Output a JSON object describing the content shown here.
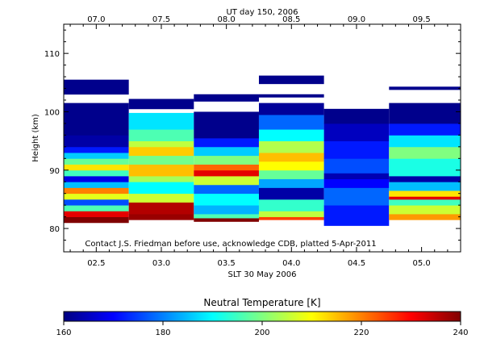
{
  "chart_data": {
    "type": "heatmap",
    "top_axis_title": "UT day 150, 2006",
    "bottom_axis_title": "SLT 30 May 2006",
    "ylabel": "Height (km)",
    "annotation": "Contact J.S. Friedman before use, acknowledge CDB, platted 5-Apr-2011",
    "x_range": [
      2.25,
      5.3
    ],
    "y_range": [
      76,
      115
    ],
    "bottom_ticks": [
      {
        "value": 2.5,
        "label": "02.5"
      },
      {
        "value": 3.0,
        "label": "03.0"
      },
      {
        "value": 3.5,
        "label": "03.5"
      },
      {
        "value": 4.0,
        "label": "04.0"
      },
      {
        "value": 4.5,
        "label": "04.5"
      },
      {
        "value": 5.0,
        "label": "05.0"
      }
    ],
    "top_ticks": [
      {
        "value": 2.5,
        "label": "07.0"
      },
      {
        "value": 3.0,
        "label": "07.5"
      },
      {
        "value": 3.5,
        "label": "08.0"
      },
      {
        "value": 4.0,
        "label": "08.5"
      },
      {
        "value": 4.5,
        "label": "09.0"
      },
      {
        "value": 5.0,
        "label": "09.5"
      }
    ],
    "y_ticks": [
      {
        "value": 80,
        "label": "80"
      },
      {
        "value": 90,
        "label": "90"
      },
      {
        "value": 100,
        "label": "100"
      },
      {
        "value": 110,
        "label": "110"
      }
    ],
    "colorbar": {
      "title": "Neutral Temperature [K]",
      "range": [
        160,
        240
      ],
      "ticks": [
        {
          "value": 160,
          "label": "160"
        },
        {
          "value": 180,
          "label": "180"
        },
        {
          "value": 200,
          "label": "200"
        },
        {
          "value": 220,
          "label": "220"
        },
        {
          "value": 240,
          "label": "240"
        }
      ]
    },
    "columns": [
      {
        "slt_start": 2.25,
        "slt_end": 2.75,
        "cells": [
          {
            "h0": 81.0,
            "h1": 82.0,
            "t": 240
          },
          {
            "h0": 82.0,
            "h1": 83.0,
            "t": 232
          },
          {
            "h0": 83.0,
            "h1": 84.0,
            "t": 196
          },
          {
            "h0": 84.0,
            "h1": 85.0,
            "t": 176
          },
          {
            "h0": 85.0,
            "h1": 86.0,
            "t": 208
          },
          {
            "h0": 86.0,
            "h1": 87.0,
            "t": 220
          },
          {
            "h0": 87.0,
            "h1": 88.0,
            "t": 185
          },
          {
            "h0": 88.0,
            "h1": 89.0,
            "t": 168
          },
          {
            "h0": 89.0,
            "h1": 90.0,
            "t": 195
          },
          {
            "h0": 90.0,
            "h1": 91.0,
            "t": 212
          },
          {
            "h0": 91.0,
            "h1": 92.0,
            "t": 198
          },
          {
            "h0": 92.0,
            "h1": 93.0,
            "t": 186
          },
          {
            "h0": 93.0,
            "h1": 94.0,
            "t": 172
          },
          {
            "h0": 94.0,
            "h1": 96.0,
            "t": 163
          },
          {
            "h0": 96.0,
            "h1": 101.5,
            "t": 161
          },
          {
            "h0": 103.0,
            "h1": 105.5,
            "t": 161
          }
        ]
      },
      {
        "slt_start": 2.75,
        "slt_end": 3.25,
        "cells": [
          {
            "h0": 81.5,
            "h1": 82.5,
            "t": 238
          },
          {
            "h0": 82.5,
            "h1": 84.5,
            "t": 236
          },
          {
            "h0": 84.5,
            "h1": 86.0,
            "t": 206
          },
          {
            "h0": 86.0,
            "h1": 88.0,
            "t": 190
          },
          {
            "h0": 88.0,
            "h1": 89.0,
            "t": 203
          },
          {
            "h0": 89.0,
            "h1": 91.0,
            "t": 215
          },
          {
            "h0": 91.0,
            "h1": 92.5,
            "t": 199
          },
          {
            "h0": 92.5,
            "h1": 94.0,
            "t": 214
          },
          {
            "h0": 94.0,
            "h1": 95.0,
            "t": 205
          },
          {
            "h0": 95.0,
            "h1": 97.0,
            "t": 196
          },
          {
            "h0": 97.0,
            "h1": 99.8,
            "t": 188
          },
          {
            "h0": 100.5,
            "h1": 102.2,
            "t": 161
          }
        ]
      },
      {
        "slt_start": 3.25,
        "slt_end": 3.75,
        "cells": [
          {
            "h0": 81.2,
            "h1": 81.8,
            "t": 240
          },
          {
            "h0": 81.8,
            "h1": 82.5,
            "t": 196
          },
          {
            "h0": 82.5,
            "h1": 84.0,
            "t": 184
          },
          {
            "h0": 84.0,
            "h1": 86.0,
            "t": 190
          },
          {
            "h0": 86.0,
            "h1": 87.5,
            "t": 178
          },
          {
            "h0": 87.5,
            "h1": 89.0,
            "t": 206
          },
          {
            "h0": 89.0,
            "h1": 90.0,
            "t": 232
          },
          {
            "h0": 90.0,
            "h1": 91.0,
            "t": 222
          },
          {
            "h0": 91.0,
            "h1": 92.5,
            "t": 200
          },
          {
            "h0": 92.5,
            "h1": 94.0,
            "t": 186
          },
          {
            "h0": 94.0,
            "h1": 95.5,
            "t": 172
          },
          {
            "h0": 95.5,
            "h1": 100.0,
            "t": 161
          },
          {
            "h0": 101.8,
            "h1": 103.0,
            "t": 161
          }
        ]
      },
      {
        "slt_start": 3.75,
        "slt_end": 4.25,
        "cells": [
          {
            "h0": 81.5,
            "h1": 82.0,
            "t": 225
          },
          {
            "h0": 82.0,
            "h1": 83.0,
            "t": 205
          },
          {
            "h0": 83.0,
            "h1": 85.0,
            "t": 194
          },
          {
            "h0": 85.0,
            "h1": 87.0,
            "t": 163
          },
          {
            "h0": 87.0,
            "h1": 88.5,
            "t": 183
          },
          {
            "h0": 88.5,
            "h1": 90.0,
            "t": 198
          },
          {
            "h0": 90.0,
            "h1": 91.5,
            "t": 210
          },
          {
            "h0": 91.5,
            "h1": 93.0,
            "t": 215
          },
          {
            "h0": 93.0,
            "h1": 95.0,
            "t": 204
          },
          {
            "h0": 95.0,
            "h1": 97.0,
            "t": 190
          },
          {
            "h0": 97.0,
            "h1": 99.5,
            "t": 178
          },
          {
            "h0": 99.5,
            "h1": 101.5,
            "t": 162
          },
          {
            "h0": 102.5,
            "h1": 103.0,
            "t": 161
          },
          {
            "h0": 104.8,
            "h1": 106.2,
            "t": 161
          }
        ]
      },
      {
        "slt_start": 4.25,
        "slt_end": 4.75,
        "cells": [
          {
            "h0": 80.5,
            "h1": 84.0,
            "t": 172
          },
          {
            "h0": 84.0,
            "h1": 87.0,
            "t": 178
          },
          {
            "h0": 87.0,
            "h1": 88.5,
            "t": 170
          },
          {
            "h0": 88.5,
            "h1": 89.5,
            "t": 164
          },
          {
            "h0": 89.5,
            "h1": 92.0,
            "t": 176
          },
          {
            "h0": 92.0,
            "h1": 95.0,
            "t": 172
          },
          {
            "h0": 95.0,
            "h1": 98.0,
            "t": 165
          },
          {
            "h0": 98.0,
            "h1": 100.5,
            "t": 161
          }
        ]
      },
      {
        "slt_start": 4.75,
        "slt_end": 5.3,
        "cells": [
          {
            "h0": 81.5,
            "h1": 82.5,
            "t": 218
          },
          {
            "h0": 82.5,
            "h1": 84.0,
            "t": 206
          },
          {
            "h0": 84.0,
            "h1": 85.0,
            "t": 195
          },
          {
            "h0": 85.0,
            "h1": 85.5,
            "t": 232
          },
          {
            "h0": 85.5,
            "h1": 86.5,
            "t": 212
          },
          {
            "h0": 86.5,
            "h1": 88.0,
            "t": 185
          },
          {
            "h0": 88.0,
            "h1": 89.0,
            "t": 163
          },
          {
            "h0": 89.0,
            "h1": 92.0,
            "t": 192
          },
          {
            "h0": 92.0,
            "h1": 94.0,
            "t": 200
          },
          {
            "h0": 94.0,
            "h1": 96.0,
            "t": 188
          },
          {
            "h0": 96.0,
            "h1": 98.0,
            "t": 172
          },
          {
            "h0": 98.0,
            "h1": 101.5,
            "t": 161
          },
          {
            "h0": 103.8,
            "h1": 104.3,
            "t": 161
          }
        ]
      }
    ]
  }
}
